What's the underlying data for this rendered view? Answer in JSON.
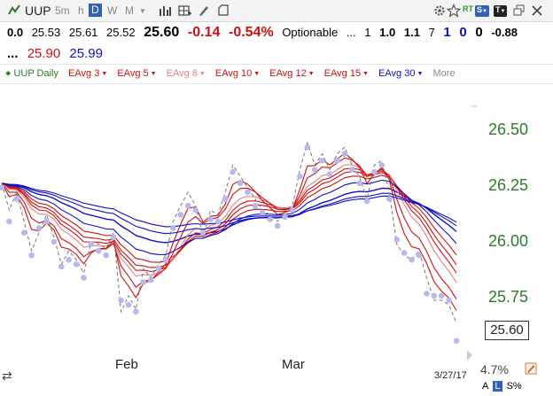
{
  "toolbar": {
    "symbol": "UUP",
    "timeframes": [
      {
        "label": "5m",
        "active": false
      },
      {
        "label": "h",
        "active": false
      },
      {
        "label": "D",
        "active": true
      },
      {
        "label": "W",
        "active": false
      },
      {
        "label": "M",
        "active": false
      }
    ],
    "rt_label": "RT",
    "s_label": "S",
    "t_label": "T"
  },
  "quote": {
    "change_prev": "0.0",
    "open": "25.53",
    "high": "25.61",
    "low": "25.52",
    "last": "25.60",
    "change": "-0.14",
    "change_pct": "-0.54%",
    "optionable": "Optionable",
    "dots": "...",
    "v1": "1",
    "v2": "1.0",
    "v3": "1.1",
    "v4": "7",
    "v5": "1",
    "v6": "0",
    "v7": "0",
    "v8": "-0.88",
    "dots2": "...",
    "bid": "25.90",
    "ask": "25.99"
  },
  "indicators": [
    {
      "label": "UUP Daily",
      "color": "#2d7a2d"
    },
    {
      "label": "EAvg 3",
      "color": "#d01010"
    },
    {
      "label": "EAvg 5",
      "color": "#d01010"
    },
    {
      "label": "EAvg 8",
      "color": "#e88080"
    },
    {
      "label": "EAvg 10",
      "color": "#d01010"
    },
    {
      "label": "EAvg 12",
      "color": "#d01010"
    },
    {
      "label": "EAvg 15",
      "color": "#d01010"
    },
    {
      "label": "EAvg 30",
      "color": "#1010c8"
    },
    {
      "label": "More",
      "color": "#888888"
    }
  ],
  "chart_data": {
    "type": "line",
    "y_ticks": [
      "26.50",
      "26.25",
      "26.00",
      "25.75"
    ],
    "ylim": [
      25.48,
      26.62
    ],
    "x_ticks": [
      "Feb",
      "Mar"
    ],
    "last_price": "25.60",
    "corner_date": "3/27/17",
    "x": [
      1,
      2,
      3,
      4,
      5,
      6,
      7,
      8,
      9,
      10,
      11,
      12,
      13,
      14,
      15,
      16,
      17,
      18,
      19,
      20,
      21,
      22,
      23,
      24,
      25,
      26,
      27,
      28,
      29,
      30,
      31,
      32,
      33,
      34,
      35,
      36,
      37,
      38,
      39,
      40,
      41,
      42,
      43,
      44,
      45,
      46,
      47,
      48,
      49,
      50,
      51,
      52,
      53,
      54,
      55,
      56,
      57,
      58,
      59,
      60,
      61,
      62
    ],
    "series": [
      {
        "kind": "close",
        "values": [
          26.22,
          26.1,
          26.18,
          26.05,
          25.92,
          26.0,
          26.08,
          25.98,
          25.86,
          25.92,
          25.88,
          25.82,
          25.96,
          25.95,
          25.93,
          26.0,
          25.65,
          25.72,
          25.66,
          25.84,
          25.8,
          25.86,
          25.9,
          26.05,
          26.12,
          26.18,
          26.12,
          25.98,
          26.1,
          26.08,
          26.18,
          26.3,
          26.25,
          26.2,
          26.15,
          26.1,
          26.08,
          26.05,
          26.1,
          26.12,
          26.28,
          26.4,
          26.3,
          26.35,
          26.28,
          26.35,
          26.38,
          26.3,
          26.25,
          26.15,
          26.3,
          26.32,
          26.18,
          25.95,
          25.9,
          25.88,
          25.92,
          25.8,
          25.7,
          25.7,
          25.68,
          25.6
        ]
      },
      {
        "kind": "dots",
        "values": [
          26.2,
          26.05,
          26.15,
          26.0,
          25.9,
          26.02,
          26.05,
          25.96,
          25.85,
          25.88,
          25.86,
          25.8,
          25.95,
          25.92,
          25.9,
          25.98,
          25.7,
          25.68,
          25.65,
          25.78,
          25.79,
          25.84,
          25.88,
          26.02,
          26.08,
          26.12,
          26.1,
          26.0,
          26.06,
          26.05,
          26.15,
          26.27,
          26.22,
          26.18,
          26.12,
          26.09,
          26.06,
          26.03,
          26.07,
          26.1,
          26.25,
          26.38,
          26.28,
          26.32,
          26.26,
          26.32,
          26.35,
          26.28,
          26.22,
          26.14,
          26.27,
          26.3,
          26.15,
          25.97,
          25.91,
          25.88,
          25.9,
          25.73,
          25.72,
          25.72,
          25.7,
          25.52
        ]
      },
      {
        "name": "EAvg 3",
        "kind": "ema",
        "period": 3,
        "color": "#d01010"
      },
      {
        "name": "EAvg 5",
        "kind": "ema",
        "period": 5,
        "color": "#d01010"
      },
      {
        "name": "EAvg 8",
        "kind": "ema",
        "period": 8,
        "color": "#e88080"
      },
      {
        "name": "EAvg 10",
        "kind": "ema",
        "period": 10,
        "color": "#d01010"
      },
      {
        "name": "EAvg 12",
        "kind": "ema",
        "period": 12,
        "color": "#d01010"
      },
      {
        "name": "EAvg 15",
        "kind": "ema",
        "period": 15,
        "color": "#d01010"
      },
      {
        "name": "EAvg 30",
        "kind": "ema",
        "period": 30,
        "color": "#1010c8"
      }
    ]
  },
  "footer": {
    "pct": "4.7%",
    "btn_a": "A",
    "btn_l": "L",
    "btn_s": "S%"
  }
}
